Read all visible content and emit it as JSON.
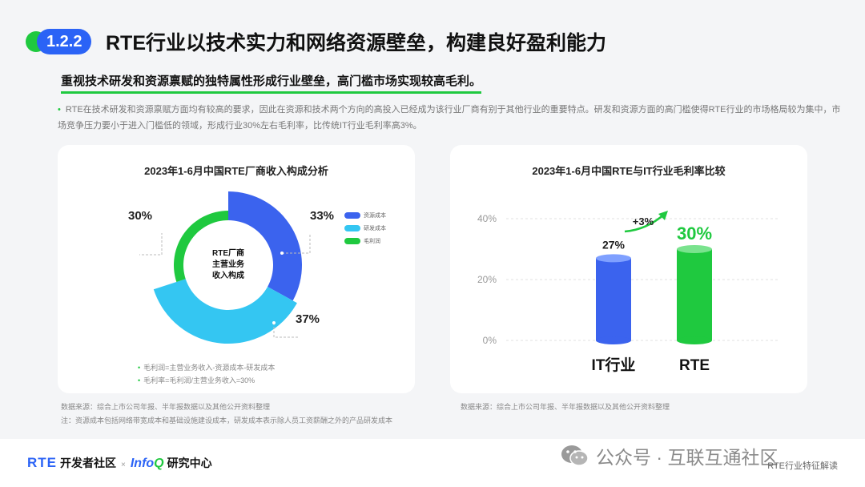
{
  "header": {
    "section_number": "1.2.2",
    "title": "RTE行业以技术实力和网络资源壁垒，构建良好盈利能力"
  },
  "subtitle": "重视技术研发和资源禀赋的独特属性形成行业壁垒，高门槛市场实现较高毛利。",
  "description": "RTE在技术研发和资源禀赋方面均有较高的要求，因此在资源和技术两个方向的高投入已经成为该行业厂商有别于其他行业的重要特点。研发和资源方面的高门槛使得RTE行业的市场格局较为集中，市场竞争压力要小于进入门槛低的领域，形成行业30%左右毛利率，比传统IT行业毛利率高3%。",
  "colors": {
    "blue": "#3b63ee",
    "cyan": "#34c6f2",
    "green": "#1fc93f",
    "accent": "#2b63f6"
  },
  "chart_data": [
    {
      "type": "pie",
      "title": "2023年1-6月中国RTE厂商收入构成分析",
      "center_label": [
        "RTE厂商",
        "主营业务",
        "收入构成"
      ],
      "slices": [
        {
          "name": "资源成本",
          "value": 33,
          "label": "33%",
          "color": "#3b63ee"
        },
        {
          "name": "研发成本",
          "value": 37,
          "label": "37%",
          "color": "#34c6f2"
        },
        {
          "name": "毛利润",
          "value": 30,
          "label": "30%",
          "color": "#1fc93f"
        }
      ],
      "legend": [
        "资源成本",
        "研发成本",
        "毛利润"
      ],
      "notes": [
        "毛利润=主营业务收入-资源成本-研发成本",
        "毛利率=毛利润/主营业务收入=30%"
      ]
    },
    {
      "type": "bar",
      "title": "2023年1-6月中国RTE与IT行业毛利率比较",
      "categories": [
        "IT行业",
        "RTE"
      ],
      "values": [
        27,
        30
      ],
      "value_labels": [
        "27%",
        "30%"
      ],
      "colors": [
        "#3b63ee",
        "#1fc93f"
      ],
      "ylim": [
        0,
        40
      ],
      "yticks": [
        "0%",
        "20%",
        "40%"
      ],
      "annotation": "+3%"
    }
  ],
  "sources": {
    "left": [
      "数据来源：综合上市公司年报、半年报数据以及其他公开资料整理",
      "注：资源成本包括网络带宽成本和基础设施建设成本，研发成本表示除人员工资薪酬之外的产品研发成本"
    ],
    "right": "数据来源：综合上市公司年报、半年报数据以及其他公开资料整理"
  },
  "footer": {
    "brand_rte": "RTE",
    "brand_dev": "开发者社区",
    "brand_x": "×",
    "brand_infoq_main": "Info",
    "brand_infoq_q": "Q",
    "brand_research": "研究中心",
    "wechat_text": "公众号 · 互联互通社区",
    "page_tag": "RTE行业特征解读"
  }
}
